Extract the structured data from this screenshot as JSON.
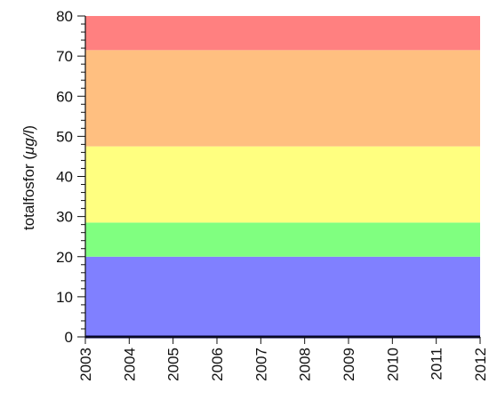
{
  "chart_data": {
    "type": "area",
    "title": "",
    "xlabel": "",
    "ylabel_text": "totalfosfor (",
    "ylabel_unit": "μg/l",
    "ylabel_close": ")",
    "x": [
      2003,
      2004,
      2005,
      2006,
      2007,
      2008,
      2009,
      2010,
      2011,
      2012
    ],
    "x_tick_labels": [
      "2003",
      "2004",
      "2005",
      "2006",
      "2007",
      "2008",
      "2009",
      "2010",
      "2011",
      "2012"
    ],
    "xlim": [
      2003,
      2012
    ],
    "ylim": [
      0,
      80
    ],
    "y_ticks": [
      0,
      10,
      20,
      30,
      40,
      50,
      60,
      70,
      80
    ],
    "y_tick_labels": [
      "0",
      "10",
      "20",
      "30",
      "40",
      "50",
      "60",
      "70",
      "80"
    ],
    "y_minor_step": 2,
    "grid": false,
    "bands": [
      {
        "from": 0,
        "to": 20,
        "color": "#8080ff"
      },
      {
        "from": 20,
        "to": 28.5,
        "color": "#80ff80"
      },
      {
        "from": 28.5,
        "to": 47.5,
        "color": "#ffff80"
      },
      {
        "from": 47.5,
        "to": 71.5,
        "color": "#ffbf80"
      },
      {
        "from": 71.5,
        "to": 80,
        "color": "#ff8080"
      }
    ],
    "series": [
      {
        "values": [
          0,
          0,
          0,
          0,
          0,
          0,
          0,
          0,
          0,
          0
        ],
        "color": "#000040"
      }
    ]
  }
}
